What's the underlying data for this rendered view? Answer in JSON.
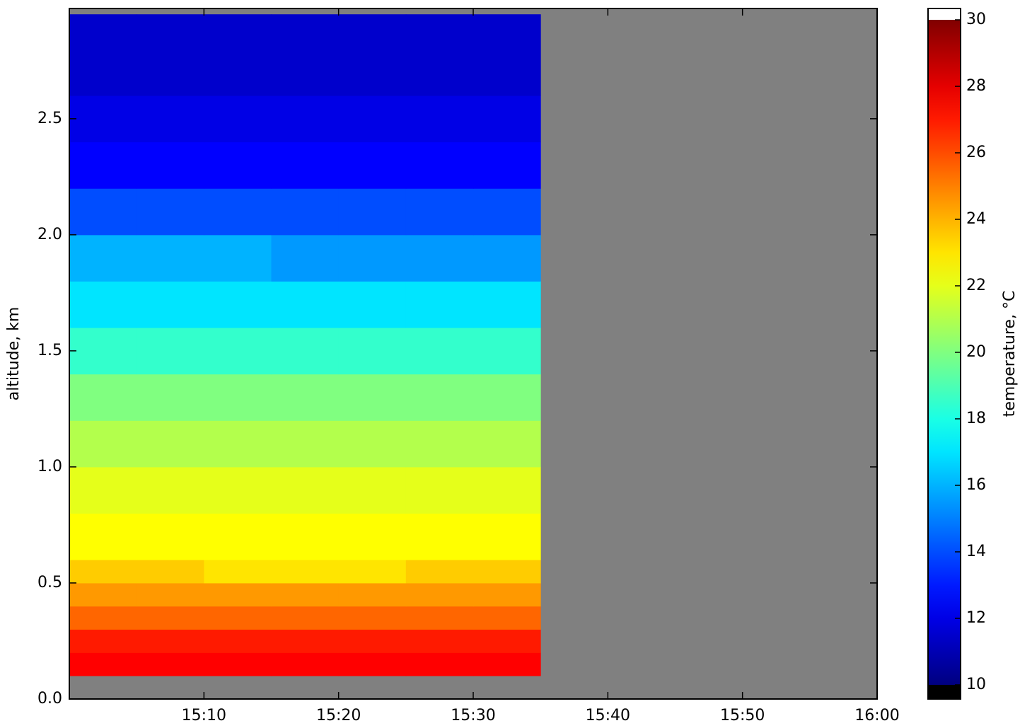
{
  "chart_data": {
    "type": "heatmap",
    "ylabel": "altitude, km",
    "colorbar_label": "temperature, °C",
    "xbins": [
      "15:00",
      "15:05",
      "15:10",
      "15:15",
      "15:20",
      "15:25",
      "15:30",
      "15:35",
      "16:00"
    ],
    "ybins": [
      0.1,
      0.2,
      0.3,
      0.4,
      0.5,
      0.6,
      0.8,
      1.0,
      1.2,
      1.4,
      1.6,
      1.8,
      2.0,
      2.2,
      2.4,
      2.6,
      2.95
    ],
    "values": [
      [
        27.5,
        27.5,
        27.5,
        27.5,
        27.5,
        27.5,
        27.5,
        null
      ],
      [
        27,
        27,
        27,
        27,
        27,
        27,
        27,
        null
      ],
      [
        25.5,
        25.5,
        25.5,
        25.5,
        25.5,
        25.5,
        25.5,
        null
      ],
      [
        24.5,
        24.5,
        24.5,
        24.5,
        24.5,
        24.5,
        24.5,
        null
      ],
      [
        23.5,
        23.5,
        23,
        23,
        23,
        23.5,
        23.5,
        null
      ],
      [
        22.5,
        22.5,
        22.5,
        22.5,
        22.5,
        22.5,
        22.5,
        null
      ],
      [
        22,
        22,
        22,
        22,
        22,
        22,
        22,
        null
      ],
      [
        21,
        21,
        21,
        21,
        21,
        21,
        21,
        null
      ],
      [
        20,
        20,
        20,
        20,
        20,
        20,
        20,
        null
      ],
      [
        18.5,
        18.5,
        18.5,
        18.5,
        18.5,
        18.5,
        18.5,
        null
      ],
      [
        17,
        17,
        17,
        17,
        17,
        17,
        17,
        null
      ],
      [
        16,
        16,
        16,
        15.5,
        15.5,
        15.5,
        15.5,
        null
      ],
      [
        14,
        14,
        14,
        14,
        14,
        14,
        14,
        null
      ],
      [
        12.5,
        12.5,
        12.5,
        12.5,
        12.5,
        12.5,
        12.5,
        null
      ],
      [
        12,
        12,
        12,
        12,
        12,
        12,
        12,
        null
      ],
      [
        11.5,
        11.5,
        11.5,
        11.5,
        11.5,
        11.5,
        11.5,
        null
      ]
    ],
    "xlim": [
      "15:00",
      "16:00"
    ],
    "xticks": [
      "15:10",
      "15:20",
      "15:30",
      "15:40",
      "15:50",
      "16:00"
    ],
    "ylim": [
      0,
      2.975
    ],
    "yticks": [
      {
        "value": 0,
        "label": "0.0"
      },
      0.5,
      {
        "value": 1,
        "label": "1.0"
      },
      1.5,
      {
        "value": 2,
        "label": "2.0"
      },
      2.5
    ],
    "clim": [
      10,
      30
    ],
    "cticks": [
      10,
      12,
      14,
      16,
      18,
      20,
      22,
      24,
      26,
      28,
      30
    ],
    "colormap": "jet",
    "missing_color": "#808080",
    "under_color": "#000000",
    "over_color": "#ffffff"
  }
}
